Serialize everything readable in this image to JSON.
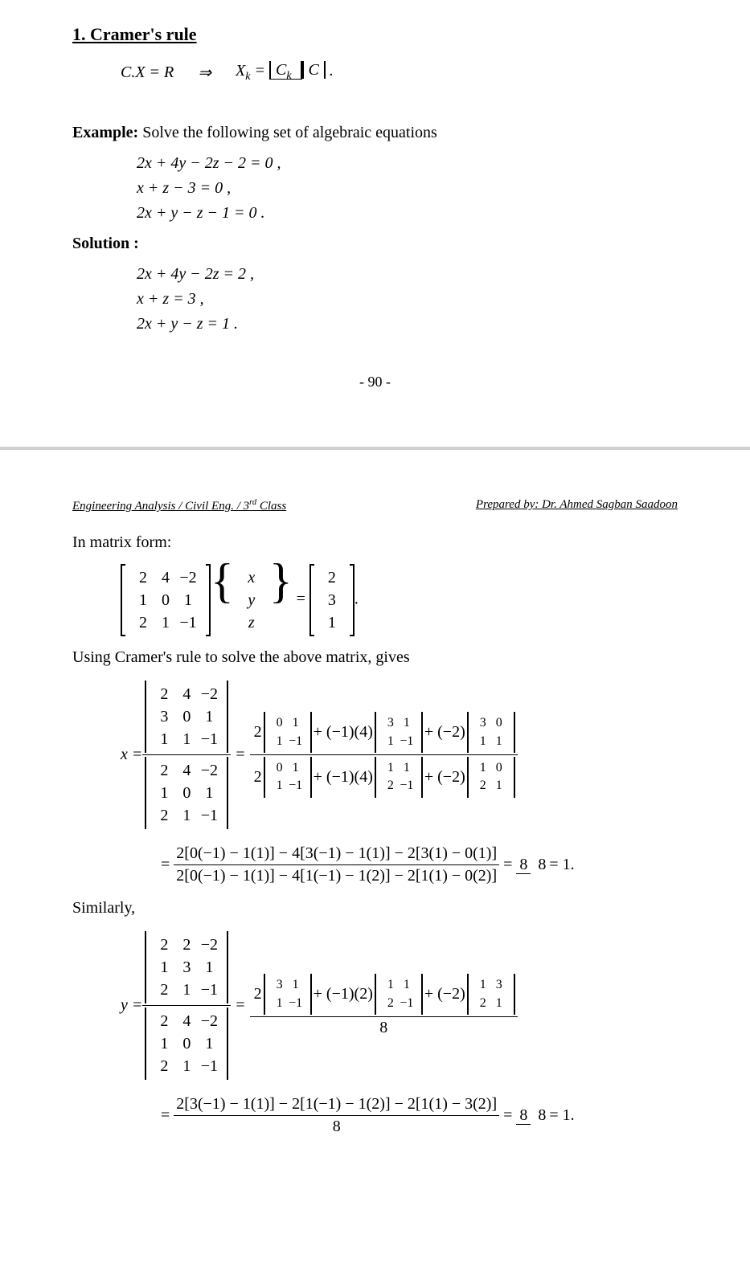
{
  "page1": {
    "section_title": "1. Cramer's rule",
    "cramer_lhs": "C.X = R",
    "implies": "⇒",
    "xk_lhs": "X",
    "xk_sub": "k",
    "xk_eq": "=",
    "det_ck_top": "C",
    "det_ck_top_sub": "k",
    "det_c_bottom": "C",
    "period": ".",
    "example_label": "Example:",
    "example_text": " Solve the following set of algebraic equations",
    "eq1": "2x + 4y − 2z − 2 = 0 ,",
    "eq2": "x + z − 3 = 0 ,",
    "eq3": "2x + y − z − 1 = 0 .",
    "solution_label": "Solution :",
    "seq1": "2x + 4y − 2z = 2 ,",
    "seq2": "x + z = 3 ,",
    "seq3": "2x + y − z = 1 .",
    "page_number": "- 90 -"
  },
  "page2": {
    "header_left": "Engineering Analysis / Civil Eng. / 3",
    "header_left_sup": "rd",
    "header_left2": " Class",
    "header_right": "Prepared by: Dr. Ahmed Sagban Saadoon",
    "matrix_text": "In matrix form:",
    "using_text": "Using Cramer's rule to solve the above matrix, gives",
    "similarly": "Similarly,",
    "coef_matrix": {
      "rows": [
        [
          "2",
          "4",
          "−2"
        ],
        [
          "1",
          "0",
          "1"
        ],
        [
          "2",
          "1",
          "−1"
        ]
      ]
    },
    "vars_vec": {
      "rows": [
        [
          "x"
        ],
        [
          "y"
        ],
        [
          "z"
        ]
      ]
    },
    "rhs_vec": {
      "rows": [
        [
          "2"
        ],
        [
          "3"
        ],
        [
          "1"
        ]
      ]
    },
    "eq_sign": "=",
    "period2": ".",
    "x_var": "x =",
    "x_num_matrix": {
      "rows": [
        [
          "2",
          "4",
          "−2"
        ],
        [
          "3",
          "0",
          "1"
        ],
        [
          "1",
          "1",
          "−1"
        ]
      ]
    },
    "x_den_matrix": {
      "rows": [
        [
          "2",
          "4",
          "−2"
        ],
        [
          "1",
          "0",
          "1"
        ],
        [
          "2",
          "1",
          "−1"
        ]
      ]
    },
    "expansion_x_num": {
      "t1_coef": "2",
      "t1_m": {
        "rows": [
          [
            "0",
            "1"
          ],
          [
            "1",
            "−1"
          ]
        ]
      },
      "t2_coef": "+ (−1)(4)",
      "t2_m": {
        "rows": [
          [
            "3",
            "1"
          ],
          [
            "1",
            "−1"
          ]
        ]
      },
      "t3_coef": "+ (−2)",
      "t3_m": {
        "rows": [
          [
            "3",
            "0"
          ],
          [
            "1",
            "1"
          ]
        ]
      }
    },
    "expansion_x_den": {
      "t1_coef": "2",
      "t1_m": {
        "rows": [
          [
            "0",
            "1"
          ],
          [
            "1",
            "−1"
          ]
        ]
      },
      "t2_coef": "+ (−1)(4)",
      "t2_m": {
        "rows": [
          [
            "1",
            "1"
          ],
          [
            "2",
            "−1"
          ]
        ]
      },
      "t3_coef": "+ (−2)",
      "t3_m": {
        "rows": [
          [
            "1",
            "0"
          ],
          [
            "2",
            "1"
          ]
        ]
      }
    },
    "x_calc_num": "2[0(−1) − 1(1)] − 4[3(−1) − 1(1)] − 2[3(1) − 0(1)]",
    "x_calc_den": "2[0(−1) − 1(1)] − 4[1(−1) − 1(2)] − 2[1(1) − 0(2)]",
    "x_result_frac_num": "8",
    "x_result_frac_den": "8",
    "x_result": "= 1.",
    "y_var": "y =",
    "y_num_matrix": {
      "rows": [
        [
          "2",
          "2",
          "−2"
        ],
        [
          "1",
          "3",
          "1"
        ],
        [
          "2",
          "1",
          "−1"
        ]
      ]
    },
    "y_den_matrix": {
      "rows": [
        [
          "2",
          "4",
          "−2"
        ],
        [
          "1",
          "0",
          "1"
        ],
        [
          "2",
          "1",
          "−1"
        ]
      ]
    },
    "expansion_y_num": {
      "t1_coef": "2",
      "t1_m": {
        "rows": [
          [
            "3",
            "1"
          ],
          [
            "1",
            "−1"
          ]
        ]
      },
      "t2_coef": "+ (−1)(2)",
      "t2_m": {
        "rows": [
          [
            "1",
            "1"
          ],
          [
            "2",
            "−1"
          ]
        ]
      },
      "t3_coef": "+ (−2)",
      "t3_m": {
        "rows": [
          [
            "1",
            "3"
          ],
          [
            "2",
            "1"
          ]
        ]
      }
    },
    "y_den_value": "8",
    "y_calc_num": "2[3(−1) − 1(1)] − 2[1(−1) − 1(2)] − 2[1(1) − 3(2)]",
    "y_calc_den": "8",
    "y_result_frac_num": "8",
    "y_result_frac_den": "8",
    "y_result": "= 1."
  },
  "styling": {
    "font_family": "Times New Roman",
    "body_font_size_pt": 14,
    "title_font_size_pt": 16,
    "text_color": "#000000",
    "background_color": "#ffffff",
    "page_separator_color": "#d0d0d0"
  }
}
